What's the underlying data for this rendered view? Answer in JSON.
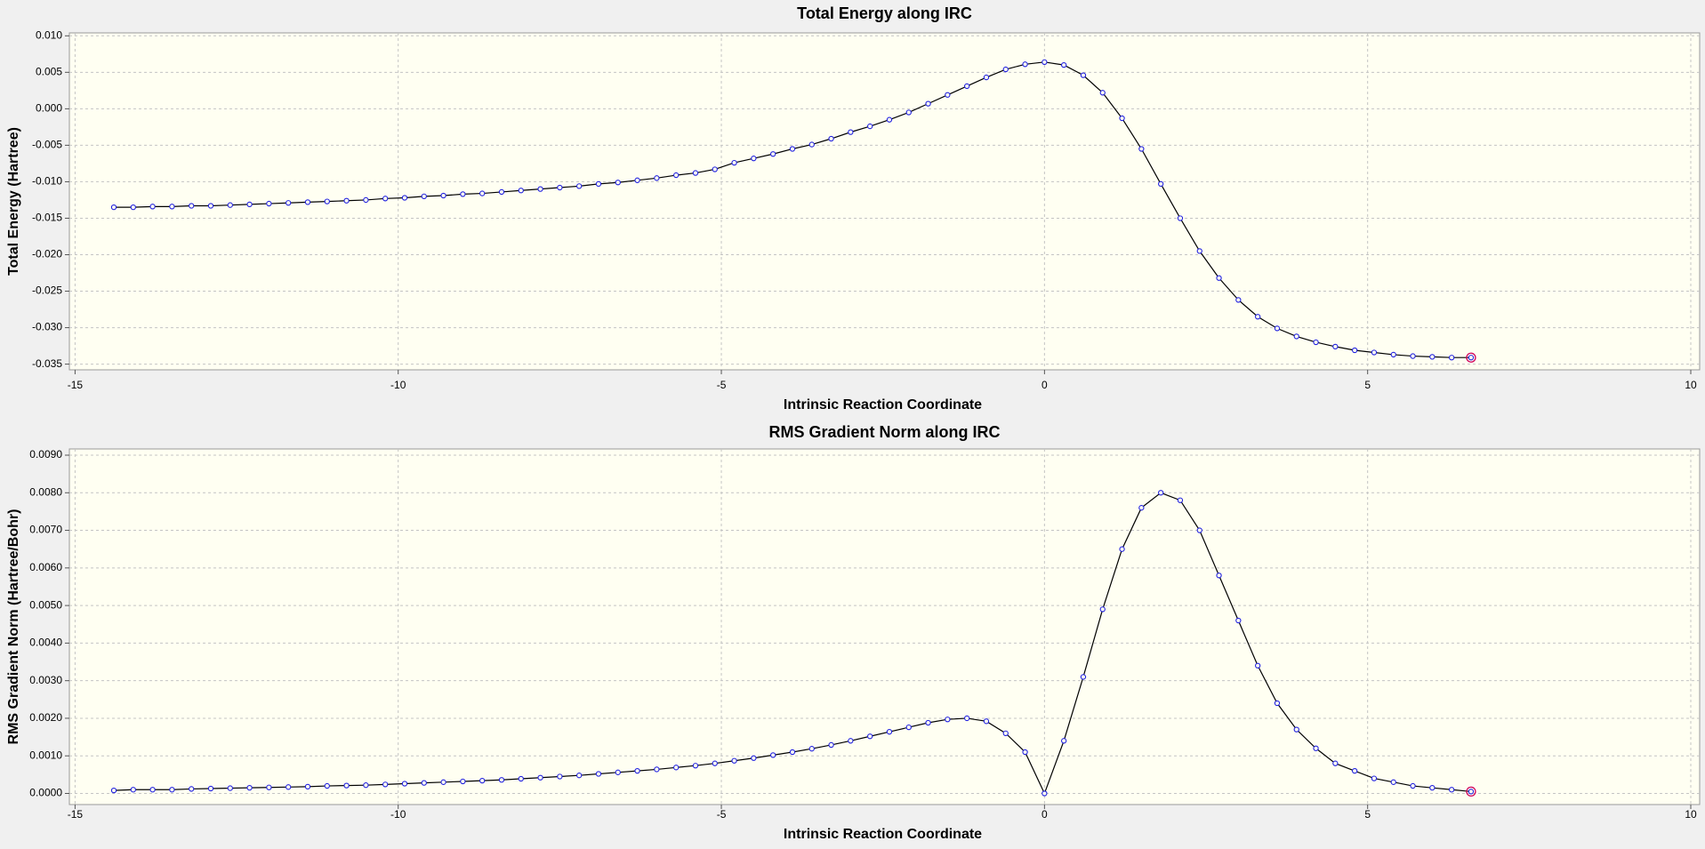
{
  "chart_data": [
    {
      "type": "line",
      "title": "Total Energy along IRC",
      "x_label": "Intrinsic Reaction Coordinate",
      "y_label": "Total Energy (Hartree)",
      "x": [
        -14.4,
        -14.1,
        -13.8,
        -13.5,
        -13.2,
        -12.9,
        -12.6,
        -12.3,
        -12.0,
        -11.7,
        -11.4,
        -11.1,
        -10.8,
        -10.5,
        -10.2,
        -9.9,
        -9.6,
        -9.3,
        -9.0,
        -8.7,
        -8.4,
        -8.1,
        -7.8,
        -7.5,
        -7.2,
        -6.9,
        -6.6,
        -6.3,
        -6.0,
        -5.7,
        -5.4,
        -5.1,
        -4.8,
        -4.5,
        -4.2,
        -3.9,
        -3.6,
        -3.3,
        -3.0,
        -2.7,
        -2.4,
        -2.1,
        -1.8,
        -1.5,
        -1.2,
        -0.9,
        -0.6,
        -0.3,
        0,
        0.3,
        0.6,
        0.9,
        1.2,
        1.5,
        1.8,
        2.1,
        2.4,
        2.7,
        3.0,
        3.3,
        3.6,
        3.9,
        4.2,
        4.5,
        4.8,
        5.1,
        5.4,
        5.7,
        6.0,
        6.3,
        6.6
      ],
      "series": [
        {
          "color": "#000000",
          "marker_color": "#2020e0",
          "values": [
            -0.0135,
            -0.0135,
            -0.0134,
            -0.0134,
            -0.0133,
            -0.0133,
            -0.0132,
            -0.0131,
            -0.013,
            -0.0129,
            -0.0128,
            -0.0127,
            -0.0126,
            -0.0125,
            -0.0123,
            -0.0122,
            -0.012,
            -0.0119,
            -0.0117,
            -0.0116,
            -0.0114,
            -0.0112,
            -0.011,
            -0.0108,
            -0.0106,
            -0.0103,
            -0.0101,
            -0.0098,
            -0.0095,
            -0.0091,
            -0.0088,
            -0.0083,
            -0.0074,
            -0.0068,
            -0.0062,
            -0.0055,
            -0.0049,
            -0.0041,
            -0.0032,
            -0.0024,
            -0.0015,
            -0.0005,
            0.0007,
            0.0019,
            0.0031,
            0.0043,
            0.0054,
            0.0061,
            0.0064,
            0.006,
            0.0046,
            0.0022,
            -0.0013,
            -0.0055,
            -0.0103,
            -0.015,
            -0.0195,
            -0.0232,
            -0.0262,
            -0.0285,
            -0.0301,
            -0.0312,
            -0.032,
            -0.0326,
            -0.0331,
            -0.0334,
            -0.0337,
            -0.0339,
            -0.034,
            -0.0341,
            -0.0341
          ]
        }
      ],
      "current_point_color": "#d0005a",
      "xlim": [
        -15,
        10
      ],
      "xticks": [
        -15,
        -10,
        -5,
        0,
        5,
        10
      ],
      "ylim": [
        -0.035,
        0.01
      ],
      "yticks": [
        {
          "value": 0.01,
          "label": "0.010"
        },
        {
          "value": 0.005,
          "label": "0.005"
        },
        {
          "value": 0.0,
          "label": "0.000"
        },
        {
          "value": -0.005,
          "label": "-0.005"
        },
        {
          "value": -0.01,
          "label": "-0.010"
        },
        {
          "value": -0.015,
          "label": "-0.015"
        },
        {
          "value": -0.02,
          "label": "-0.020"
        },
        {
          "value": -0.025,
          "label": "-0.025"
        },
        {
          "value": -0.03,
          "label": "-0.030"
        },
        {
          "value": -0.035,
          "label": "-0.035"
        }
      ],
      "grid": true
    },
    {
      "type": "line",
      "title": "RMS Gradient Norm along IRC",
      "x_label": "Intrinsic Reaction Coordinate",
      "y_label": "RMS Gradient Norm (Hartree/Bohr)",
      "x": [
        -14.4,
        -14.1,
        -13.8,
        -13.5,
        -13.2,
        -12.9,
        -12.6,
        -12.3,
        -12.0,
        -11.7,
        -11.4,
        -11.1,
        -10.8,
        -10.5,
        -10.2,
        -9.9,
        -9.6,
        -9.3,
        -9.0,
        -8.7,
        -8.4,
        -8.1,
        -7.8,
        -7.5,
        -7.2,
        -6.9,
        -6.6,
        -6.3,
        -6.0,
        -5.7,
        -5.4,
        -5.1,
        -4.8,
        -4.5,
        -4.2,
        -3.9,
        -3.6,
        -3.3,
        -3.0,
        -2.7,
        -2.4,
        -2.1,
        -1.8,
        -1.5,
        -1.2,
        -0.9,
        -0.6,
        -0.3,
        0,
        0.3,
        0.6,
        0.9,
        1.2,
        1.5,
        1.8,
        2.1,
        2.4,
        2.7,
        3.0,
        3.3,
        3.6,
        3.9,
        4.2,
        4.5,
        4.8,
        5.1,
        5.4,
        5.7,
        6.0,
        6.3,
        6.6
      ],
      "series": [
        {
          "color": "#000000",
          "marker_color": "#2020e0",
          "values": [
            8e-05,
            0.0001,
            0.0001,
            0.0001,
            0.00012,
            0.00013,
            0.00014,
            0.00015,
            0.00016,
            0.00017,
            0.00018,
            0.0002,
            0.00021,
            0.00022,
            0.00024,
            0.00026,
            0.00028,
            0.0003,
            0.00032,
            0.00034,
            0.00036,
            0.00039,
            0.00042,
            0.00045,
            0.00048,
            0.00052,
            0.00056,
            0.0006,
            0.00064,
            0.00069,
            0.00074,
            0.0008,
            0.00087,
            0.00094,
            0.00102,
            0.0011,
            0.00119,
            0.00129,
            0.0014,
            0.00152,
            0.00164,
            0.00176,
            0.00188,
            0.00197,
            0.002,
            0.00192,
            0.0016,
            0.0011,
            0,
            0.0014,
            0.0031,
            0.0049,
            0.0065,
            0.0076,
            0.008,
            0.0078,
            0.007,
            0.0058,
            0.0046,
            0.0034,
            0.0024,
            0.0017,
            0.0012,
            0.0008,
            0.0006,
            0.0004,
            0.0003,
            0.0002,
            0.00015,
            0.0001,
            5e-05
          ]
        }
      ],
      "current_point_color": "#d0005a",
      "xlim": [
        -15,
        10
      ],
      "xticks": [
        -15,
        -10,
        -5,
        0,
        5,
        10
      ],
      "ylim": [
        0,
        0.009
      ],
      "yticks": [
        {
          "value": 0.009,
          "label": "0.0090"
        },
        {
          "value": 0.008,
          "label": "0.0080"
        },
        {
          "value": 0.007,
          "label": "0.0070"
        },
        {
          "value": 0.006,
          "label": "0.0060"
        },
        {
          "value": 0.005,
          "label": "0.0050"
        },
        {
          "value": 0.004,
          "label": "0.0040"
        },
        {
          "value": 0.003,
          "label": "0.0030"
        },
        {
          "value": 0.002,
          "label": "0.0020"
        },
        {
          "value": 0.001,
          "label": "0.0010"
        },
        {
          "value": 0,
          "label": "0.0000"
        }
      ],
      "grid": true
    }
  ]
}
